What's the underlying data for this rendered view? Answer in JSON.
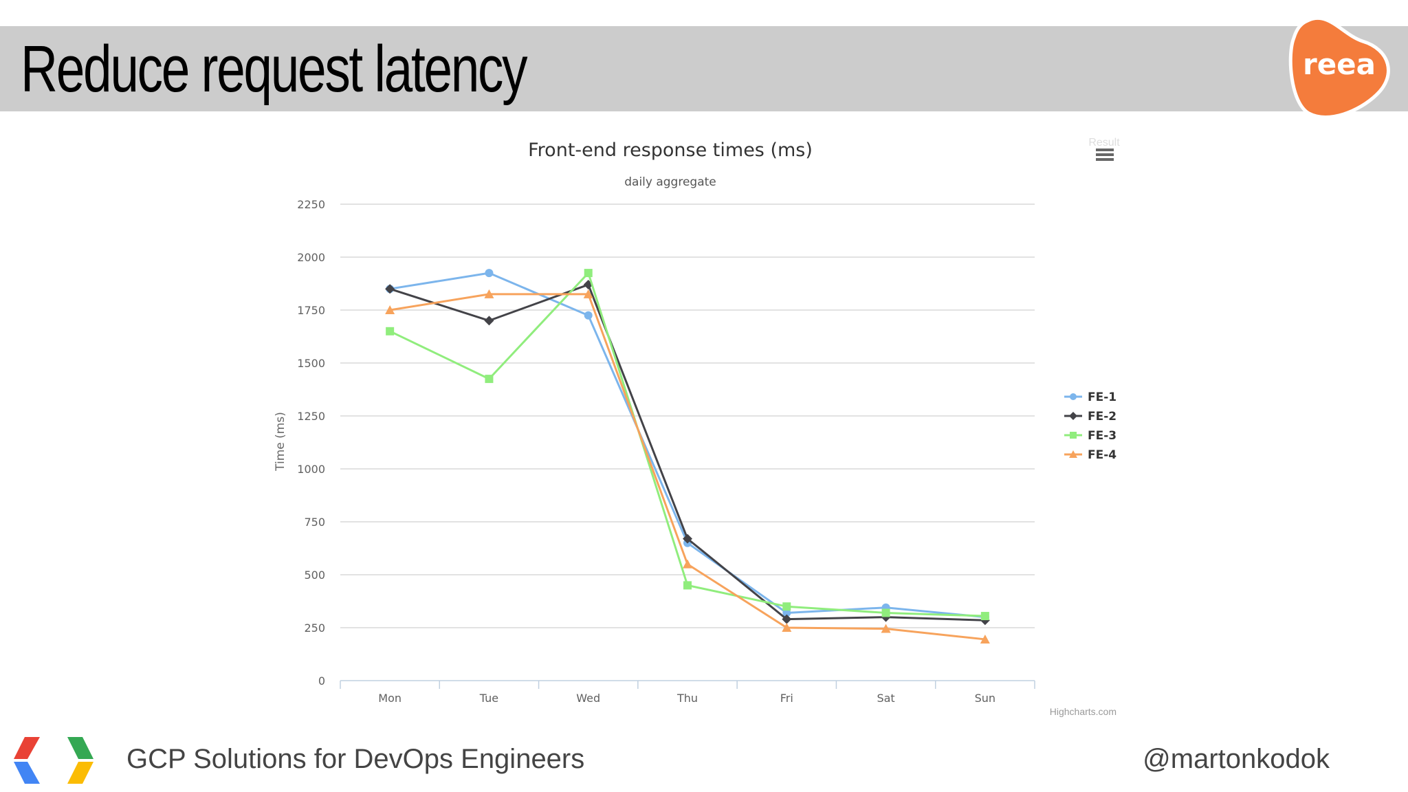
{
  "slide": {
    "title": "Reduce request latency",
    "logo_text": "reea",
    "footer_left": "GCP Solutions for DevOps Engineers",
    "footer_right": "@martonkodok"
  },
  "colors": {
    "title_bar": "#cccccc",
    "logo": "#f47c3c"
  },
  "chart_data": {
    "type": "line",
    "title": "Front-end response times (ms)",
    "subtitle": "daily aggregate",
    "xlabel": "",
    "ylabel": "Time (ms)",
    "ylim": [
      0,
      2250
    ],
    "yticks": [
      0,
      250,
      500,
      750,
      1000,
      1250,
      1500,
      1750,
      2000,
      2250
    ],
    "categories": [
      "Mon",
      "Tue",
      "Wed",
      "Thu",
      "Fri",
      "Sat",
      "Sun"
    ],
    "series": [
      {
        "name": "FE-1",
        "color": "#7cb5ec",
        "marker": "circle",
        "values": [
          1850,
          1925,
          1725,
          650,
          320,
          345,
          300
        ]
      },
      {
        "name": "FE-2",
        "color": "#434348",
        "marker": "diamond",
        "values": [
          1850,
          1700,
          1870,
          670,
          290,
          300,
          285
        ]
      },
      {
        "name": "FE-3",
        "color": "#90ed7d",
        "marker": "square",
        "values": [
          1650,
          1425,
          1925,
          450,
          350,
          320,
          305
        ]
      },
      {
        "name": "FE-4",
        "color": "#f7a35c",
        "marker": "triangle",
        "values": [
          1750,
          1825,
          1825,
          550,
          250,
          245,
          195
        ]
      }
    ],
    "legend_position": "right",
    "grid": true,
    "menu_label": "Result",
    "credits": "Highcharts.com"
  }
}
